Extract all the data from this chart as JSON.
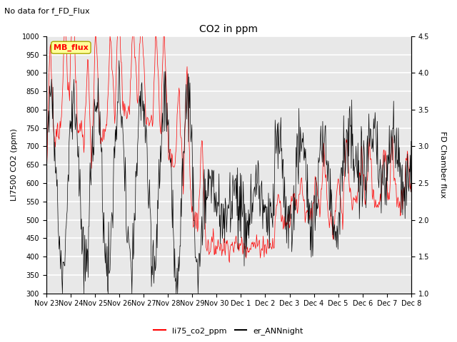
{
  "title": "CO2 in ppm",
  "subtitle": "No data for f_FD_Flux",
  "ylabel_left": "LI7500 CO2 (ppm)",
  "ylabel_right": "FD Chamber flux",
  "ylim_left": [
    300,
    1000
  ],
  "ylim_right": [
    1.0,
    4.5
  ],
  "yticks_left": [
    300,
    350,
    400,
    450,
    500,
    550,
    600,
    650,
    700,
    750,
    800,
    850,
    900,
    950,
    1000
  ],
  "yticks_right": [
    1.0,
    1.5,
    2.0,
    2.5,
    3.0,
    3.5,
    4.0,
    4.5
  ],
  "legend_label1": "li75_co2_ppm",
  "legend_label2": "er_ANNnight",
  "legend_color1": "red",
  "legend_color2": "black",
  "mb_flux_box_color": "#ffff99",
  "mb_flux_text_color": "red",
  "mb_flux_label": "MB_flux",
  "background_color": "#e8e8e8",
  "grid_color": "#ffffff",
  "xlabel_dates": [
    "Nov 23",
    "Nov 24",
    "Nov 25",
    "Nov 26",
    "Nov 27",
    "Nov 28",
    "Nov 29",
    "Nov 30",
    "Dec 1",
    "Dec 2",
    "Dec 3",
    "Dec 4",
    "Dec 5",
    "Dec 6",
    "Dec 7",
    "Dec 8"
  ],
  "figsize": [
    6.4,
    4.8
  ],
  "dpi": 100
}
